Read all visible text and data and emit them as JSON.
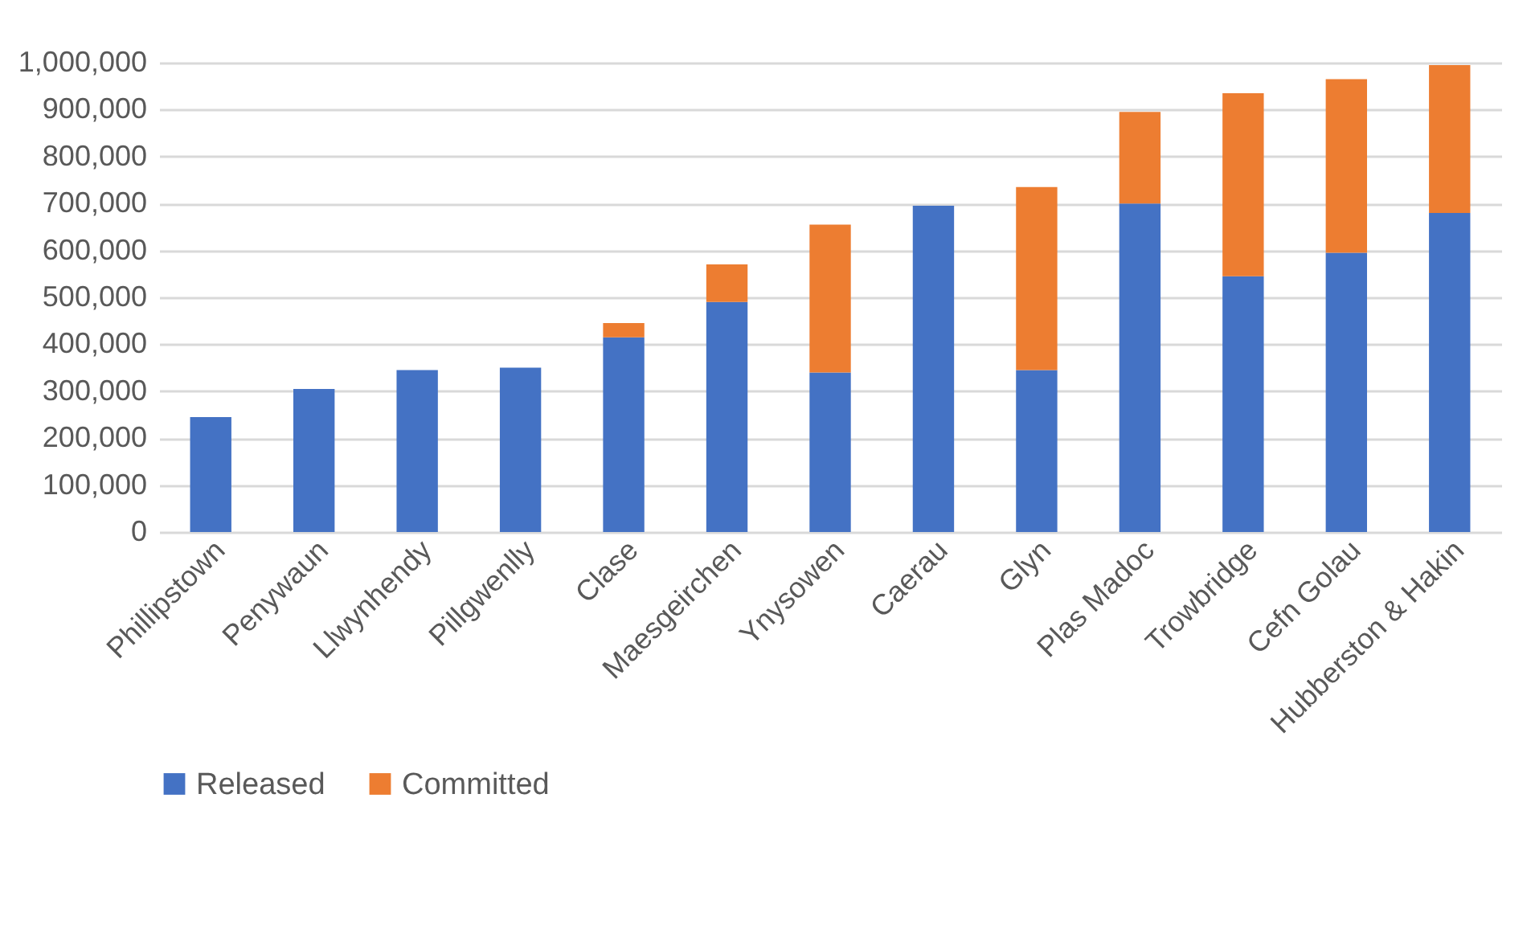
{
  "chart_data": {
    "type": "bar",
    "stacked": true,
    "categories": [
      "Phillipstown",
      "Penywaun",
      "Llwynhendy",
      "Pillgwenlly",
      "Clase",
      "Maesgeirchen",
      "Ynysowen",
      "Caerau",
      "Glyn",
      "Plas Madoc",
      "Trowbridge",
      "Cefn Golau",
      "Hubberston & Hakin"
    ],
    "series": [
      {
        "name": "Released",
        "color": "#4472c4",
        "values": [
          245000,
          305000,
          345000,
          350000,
          415000,
          490000,
          340000,
          695000,
          345000,
          700000,
          545000,
          595000,
          680000
        ]
      },
      {
        "name": "Committed",
        "color": "#ed7d31",
        "values": [
          null,
          null,
          null,
          null,
          30000,
          80000,
          315000,
          null,
          390000,
          195000,
          390000,
          370000,
          315000
        ]
      }
    ],
    "ylim": [
      0,
      1000000
    ],
    "yticks": [
      {
        "value": 0,
        "label": "0"
      },
      {
        "value": 100000,
        "label": "100,000"
      },
      {
        "value": 200000,
        "label": "200,000"
      },
      {
        "value": 300000,
        "label": "300,000"
      },
      {
        "value": 400000,
        "label": "400,000"
      },
      {
        "value": 500000,
        "label": "500,000"
      },
      {
        "value": 600000,
        "label": "600,000"
      },
      {
        "value": 700000,
        "label": "700,000"
      },
      {
        "value": 800000,
        "label": "800,000"
      },
      {
        "value": 900000,
        "label": "900,000"
      },
      {
        "value": 1000000,
        "label": "1,000,000"
      }
    ],
    "grid": "y",
    "legend": "bottom"
  }
}
